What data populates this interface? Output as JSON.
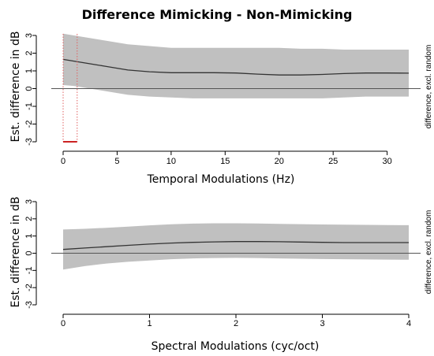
{
  "title": "Difference Mimicking - Non-Mimicking",
  "chart_data": [
    {
      "type": "area",
      "title": "Difference Mimicking - Non-Mimicking",
      "xlabel": "Temporal Modulations (Hz)",
      "ylabel": "Est. difference in dB",
      "side_label": "difference, excl. random",
      "xlim": [
        0,
        32
      ],
      "ylim": [
        -3,
        3
      ],
      "xticks": [
        0,
        5,
        10,
        15,
        20,
        25,
        30
      ],
      "yticks": [
        -3,
        -2,
        -1,
        0,
        1,
        2,
        3
      ],
      "series": [
        {
          "x": [
            0,
            1,
            2,
            3,
            4,
            5,
            6,
            8,
            10,
            12,
            14,
            16,
            18,
            20,
            22,
            24,
            26,
            28,
            30,
            32
          ],
          "y": [
            1.65,
            1.55,
            1.45,
            1.35,
            1.25,
            1.15,
            1.05,
            0.95,
            0.9,
            0.9,
            0.9,
            0.88,
            0.82,
            0.77,
            0.77,
            0.8,
            0.85,
            0.88,
            0.88,
            0.87
          ],
          "lower": [
            0.2,
            0.15,
            0.05,
            -0.05,
            -0.15,
            -0.25,
            -0.35,
            -0.45,
            -0.5,
            -0.55,
            -0.55,
            -0.55,
            -0.55,
            -0.55,
            -0.55,
            -0.55,
            -0.5,
            -0.45,
            -0.45,
            -0.45
          ],
          "upper": [
            3.1,
            3.0,
            2.9,
            2.8,
            2.7,
            2.6,
            2.5,
            2.4,
            2.3,
            2.3,
            2.3,
            2.3,
            2.3,
            2.3,
            2.25,
            2.25,
            2.2,
            2.2,
            2.2,
            2.2
          ]
        }
      ],
      "reference_line": 0,
      "marked_interval": [
        0,
        1.3
      ],
      "colors": {
        "band": "#c0c0c0",
        "line": "#333333",
        "marker": "#e06060"
      }
    },
    {
      "type": "area",
      "xlabel": "Spectral Modulations (cyc/oct)",
      "ylabel": "Est. difference in dB",
      "side_label": "difference, excl. random",
      "xlim": [
        0,
        4
      ],
      "ylim": [
        -3,
        3
      ],
      "xticks": [
        0,
        1,
        2,
        3,
        4
      ],
      "yticks": [
        -3,
        -2,
        -1,
        0,
        1,
        2,
        3
      ],
      "series": [
        {
          "x": [
            0,
            0.25,
            0.5,
            0.75,
            1,
            1.25,
            1.5,
            1.75,
            2,
            2.25,
            2.5,
            2.75,
            3,
            3.25,
            3.5,
            3.75,
            4
          ],
          "y": [
            0.22,
            0.3,
            0.38,
            0.46,
            0.53,
            0.59,
            0.63,
            0.66,
            0.68,
            0.68,
            0.67,
            0.65,
            0.63,
            0.62,
            0.62,
            0.62,
            0.62
          ],
          "lower": [
            -0.95,
            -0.75,
            -0.6,
            -0.5,
            -0.42,
            -0.35,
            -0.3,
            -0.28,
            -0.27,
            -0.28,
            -0.3,
            -0.32,
            -0.34,
            -0.35,
            -0.36,
            -0.37,
            -0.38
          ],
          "upper": [
            1.38,
            1.42,
            1.48,
            1.55,
            1.62,
            1.68,
            1.72,
            1.74,
            1.74,
            1.73,
            1.71,
            1.69,
            1.67,
            1.66,
            1.65,
            1.64,
            1.63
          ]
        }
      ],
      "reference_line": 0,
      "colors": {
        "band": "#c0c0c0",
        "line": "#333333"
      }
    }
  ]
}
